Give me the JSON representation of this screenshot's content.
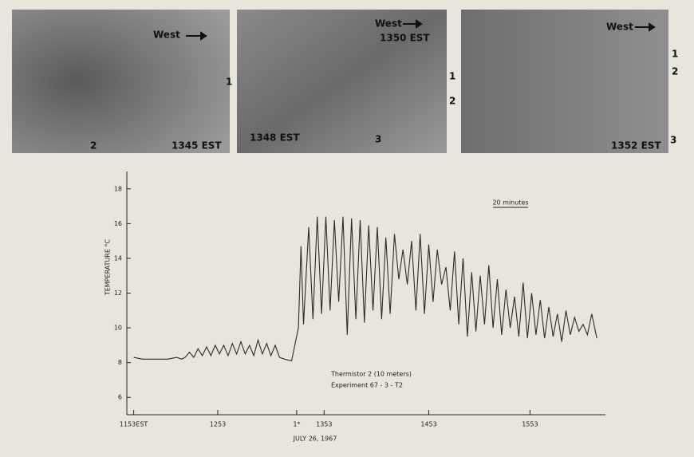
{
  "photos": [
    {
      "labels": [
        "West",
        "1",
        "2",
        "1345 EST"
      ]
    },
    {
      "labels": [
        "West",
        "1350 EST",
        "1",
        "2",
        "1348 EST",
        "3"
      ]
    },
    {
      "labels": [
        "West",
        "1",
        "2",
        "1352 EST",
        "3"
      ]
    }
  ],
  "chart_data": {
    "type": "line",
    "y_label": "TEMPERATURE °C",
    "x_label": "JULY 26, 1967",
    "scale_bar": "20 minutes",
    "annotations": [
      "Thermistor  2 (10 meters)",
      "Experiment  67 - 3 - T2"
    ],
    "xlim": [
      -4,
      275
    ],
    "ylim": [
      5,
      19
    ],
    "xticks": [
      {
        "value": 0,
        "label": "1153EST"
      },
      {
        "value": 49,
        "label": "1253"
      },
      {
        "value": 95,
        "label": "1*"
      },
      {
        "value": 111,
        "label": "1353"
      },
      {
        "value": 172,
        "label": "1453"
      },
      {
        "value": 231,
        "label": "1553"
      }
    ],
    "yticks": [
      6,
      8,
      10,
      12,
      14,
      16,
      18
    ],
    "series": [
      {
        "color": "#2a2a2a",
        "x": [
          0,
          5,
          10,
          15,
          20,
          25,
          28,
          30,
          32.5,
          35,
          37.5,
          40,
          42.5,
          45,
          47.5,
          50,
          52.5,
          55,
          57.5,
          60,
          62.5,
          65,
          67.5,
          70,
          72.5,
          75,
          77.5,
          80,
          82.5,
          85,
          88,
          92,
          96,
          97.5,
          99,
          102,
          104.5,
          107,
          109.5,
          112,
          114.5,
          117,
          119.5,
          122,
          124.5,
          127,
          129.5,
          132,
          134.5,
          137,
          139.5,
          142,
          144.5,
          147,
          149.5,
          152,
          154.5,
          157,
          159.5,
          162,
          164.5,
          167,
          169.5,
          172,
          174.5,
          177,
          179.5,
          182,
          184.5,
          187,
          189.5,
          192,
          194.5,
          197,
          199.5,
          202,
          204.5,
          207,
          209.5,
          212,
          214.5,
          217,
          219.5,
          222,
          224.5,
          227,
          229.5,
          232,
          234.5,
          237,
          239.5,
          242,
          244.5,
          247,
          249.5,
          252,
          254.5,
          257,
          259.5,
          262,
          264.5,
          267,
          270
        ],
        "values": [
          8.3,
          8.2,
          8.2,
          8.2,
          8.2,
          8.3,
          8.2,
          8.3,
          8.6,
          8.3,
          8.8,
          8.4,
          8.9,
          8.4,
          9.0,
          8.5,
          9.0,
          8.4,
          9.1,
          8.5,
          9.2,
          8.5,
          9.0,
          8.4,
          9.3,
          8.5,
          9.1,
          8.4,
          9.0,
          8.3,
          8.2,
          8.1,
          10.0,
          14.7,
          10.2,
          15.8,
          10.5,
          16.4,
          10.8,
          16.4,
          11.0,
          16.2,
          11.5,
          16.4,
          9.6,
          16.3,
          10.5,
          16.2,
          10.3,
          15.9,
          11.0,
          15.8,
          10.5,
          15.2,
          10.8,
          15.4,
          12.8,
          14.5,
          12.5,
          15.0,
          11.0,
          15.4,
          10.8,
          14.8,
          11.5,
          14.5,
          12.5,
          13.5,
          11.0,
          14.4,
          10.2,
          14.0,
          9.5,
          13.2,
          9.8,
          13.0,
          10.2,
          13.6,
          10.0,
          12.8,
          9.6,
          12.2,
          10.0,
          11.8,
          9.5,
          12.6,
          9.4,
          12.0,
          9.6,
          11.6,
          9.4,
          11.2,
          9.5,
          10.8,
          9.2,
          11.0,
          9.6,
          10.6,
          9.8,
          10.2,
          9.6,
          10.8,
          9.4
        ]
      }
    ]
  }
}
